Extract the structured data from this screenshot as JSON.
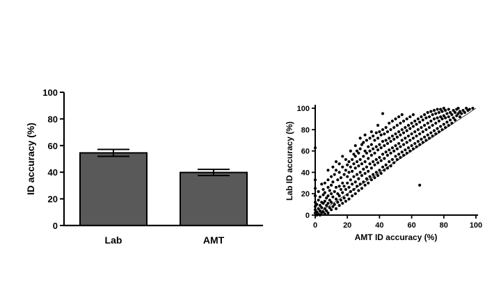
{
  "chart_data": [
    {
      "type": "bar",
      "categories": [
        "Lab",
        "AMT"
      ],
      "values": [
        54.5,
        39.8
      ],
      "error": [
        2.6,
        2.3
      ],
      "xlabel": "",
      "ylabel": "ID accuracy (%)",
      "ylim": [
        0,
        100
      ],
      "yticks": [
        "0",
        "20",
        "40",
        "60",
        "80",
        "100"
      ],
      "bar_color": "#595959",
      "grid": false
    },
    {
      "type": "scatter",
      "xlabel": "AMT ID accuracy (%)",
      "ylabel": "Lab ID accuracy (%)",
      "xlim": [
        0,
        100
      ],
      "ylim": [
        0,
        100
      ],
      "xticks": [
        "0",
        "20",
        "40",
        "60",
        "80",
        "100"
      ],
      "yticks": [
        "0",
        "20",
        "40",
        "60",
        "80",
        "100"
      ],
      "reference_line": [
        [
          0,
          0
        ],
        [
          100,
          100
        ]
      ],
      "point_color": "#000000",
      "grid": false,
      "points": [
        [
          0,
          2
        ],
        [
          0,
          5
        ],
        [
          0,
          8
        ],
        [
          0,
          12
        ],
        [
          0,
          18
        ],
        [
          0,
          25
        ],
        [
          0,
          33
        ],
        [
          0,
          63
        ],
        [
          1,
          0
        ],
        [
          1,
          3
        ],
        [
          1,
          10
        ],
        [
          2,
          1
        ],
        [
          2,
          6
        ],
        [
          2,
          14
        ],
        [
          2,
          22
        ],
        [
          3,
          0
        ],
        [
          3,
          4
        ],
        [
          3,
          9
        ],
        [
          3,
          17
        ],
        [
          4,
          2
        ],
        [
          4,
          7
        ],
        [
          4,
          12
        ],
        [
          4,
          29
        ],
        [
          5,
          3
        ],
        [
          5,
          11
        ],
        [
          5,
          19
        ],
        [
          5,
          24
        ],
        [
          6,
          1
        ],
        [
          6,
          6
        ],
        [
          6,
          13
        ],
        [
          6,
          21
        ],
        [
          6,
          30
        ],
        [
          7,
          4
        ],
        [
          7,
          9
        ],
        [
          7,
          16
        ],
        [
          8,
          2
        ],
        [
          8,
          11
        ],
        [
          8,
          18
        ],
        [
          8,
          26
        ],
        [
          8,
          33
        ],
        [
          8,
          42
        ],
        [
          9,
          7
        ],
        [
          9,
          14
        ],
        [
          9,
          23
        ],
        [
          10,
          5
        ],
        [
          10,
          12
        ],
        [
          10,
          20
        ],
        [
          10,
          28
        ],
        [
          10,
          36
        ],
        [
          11,
          8
        ],
        [
          11,
          17
        ],
        [
          11,
          31
        ],
        [
          11,
          45
        ],
        [
          12,
          10
        ],
        [
          12,
          22
        ],
        [
          12,
          38
        ],
        [
          13,
          6
        ],
        [
          13,
          15
        ],
        [
          13,
          26
        ],
        [
          13,
          42
        ],
        [
          13,
          50
        ],
        [
          14,
          12
        ],
        [
          14,
          20
        ],
        [
          14,
          33
        ],
        [
          15,
          9
        ],
        [
          15,
          18
        ],
        [
          15,
          27
        ],
        [
          15,
          40
        ],
        [
          15,
          48
        ],
        [
          16,
          14
        ],
        [
          16,
          24
        ],
        [
          16,
          35
        ],
        [
          17,
          11
        ],
        [
          17,
          21
        ],
        [
          17,
          30
        ],
        [
          17,
          45
        ],
        [
          17,
          55
        ],
        [
          18,
          16
        ],
        [
          18,
          27
        ],
        [
          18,
          38
        ],
        [
          19,
          13
        ],
        [
          19,
          24
        ],
        [
          19,
          42
        ],
        [
          19,
          52
        ],
        [
          20,
          19
        ],
        [
          20,
          30
        ],
        [
          20,
          36
        ],
        [
          20,
          47
        ],
        [
          21,
          15
        ],
        [
          21,
          26
        ],
        [
          21,
          40
        ],
        [
          21,
          50
        ],
        [
          22,
          22
        ],
        [
          22,
          33
        ],
        [
          22,
          45
        ],
        [
          22,
          60
        ],
        [
          23,
          18
        ],
        [
          23,
          29
        ],
        [
          23,
          41
        ],
        [
          23,
          52
        ],
        [
          24,
          24
        ],
        [
          24,
          36
        ],
        [
          24,
          48
        ],
        [
          24,
          57
        ],
        [
          25,
          20
        ],
        [
          25,
          31
        ],
        [
          25,
          44
        ],
        [
          25,
          55
        ],
        [
          25,
          65
        ],
        [
          26,
          27
        ],
        [
          26,
          38
        ],
        [
          26,
          50
        ],
        [
          26,
          60
        ],
        [
          27,
          23
        ],
        [
          27,
          34
        ],
        [
          27,
          46
        ],
        [
          27,
          58
        ],
        [
          28,
          29
        ],
        [
          28,
          40
        ],
        [
          28,
          52
        ],
        [
          28,
          62
        ],
        [
          28,
          72
        ],
        [
          29,
          25
        ],
        [
          29,
          37
        ],
        [
          29,
          48
        ],
        [
          29,
          66
        ],
        [
          30,
          31
        ],
        [
          30,
          43
        ],
        [
          30,
          55
        ],
        [
          30,
          68
        ],
        [
          31,
          28
        ],
        [
          31,
          39
        ],
        [
          31,
          50
        ],
        [
          31,
          60
        ],
        [
          31,
          75
        ],
        [
          32,
          34
        ],
        [
          32,
          45
        ],
        [
          32,
          58
        ],
        [
          32,
          70
        ],
        [
          33,
          30
        ],
        [
          33,
          41
        ],
        [
          33,
          53
        ],
        [
          33,
          64
        ],
        [
          34,
          36
        ],
        [
          34,
          48
        ],
        [
          34,
          60
        ],
        [
          34,
          72
        ],
        [
          35,
          33
        ],
        [
          35,
          44
        ],
        [
          35,
          56
        ],
        [
          35,
          66
        ],
        [
          35,
          78
        ],
        [
          36,
          38
        ],
        [
          36,
          50
        ],
        [
          36,
          62
        ],
        [
          36,
          74
        ],
        [
          37,
          35
        ],
        [
          37,
          47
        ],
        [
          37,
          58
        ],
        [
          37,
          70
        ],
        [
          38,
          40
        ],
        [
          38,
          52
        ],
        [
          38,
          64
        ],
        [
          38,
          77
        ],
        [
          39,
          37
        ],
        [
          39,
          49
        ],
        [
          39,
          61
        ],
        [
          39,
          72
        ],
        [
          39,
          84
        ],
        [
          40,
          42
        ],
        [
          40,
          54
        ],
        [
          40,
          66
        ],
        [
          40,
          78
        ],
        [
          41,
          39
        ],
        [
          41,
          51
        ],
        [
          41,
          63
        ],
        [
          41,
          75
        ],
        [
          42,
          45
        ],
        [
          42,
          57
        ],
        [
          42,
          69
        ],
        [
          42,
          80
        ],
        [
          42,
          95
        ],
        [
          43,
          42
        ],
        [
          43,
          53
        ],
        [
          43,
          65
        ],
        [
          43,
          76
        ],
        [
          44,
          47
        ],
        [
          44,
          59
        ],
        [
          44,
          70
        ],
        [
          44,
          82
        ],
        [
          45,
          44
        ],
        [
          45,
          56
        ],
        [
          45,
          67
        ],
        [
          45,
          78
        ],
        [
          46,
          50
        ],
        [
          46,
          61
        ],
        [
          46,
          72
        ],
        [
          46,
          86
        ],
        [
          47,
          46
        ],
        [
          47,
          58
        ],
        [
          47,
          69
        ],
        [
          47,
          80
        ],
        [
          48,
          52
        ],
        [
          48,
          63
        ],
        [
          48,
          74
        ],
        [
          48,
          88
        ],
        [
          49,
          49
        ],
        [
          49,
          60
        ],
        [
          49,
          71
        ],
        [
          49,
          82
        ],
        [
          50,
          55
        ],
        [
          50,
          65
        ],
        [
          50,
          76
        ],
        [
          50,
          90
        ],
        [
          51,
          52
        ],
        [
          51,
          62
        ],
        [
          51,
          73
        ],
        [
          51,
          84
        ],
        [
          52,
          57
        ],
        [
          52,
          67
        ],
        [
          52,
          78
        ],
        [
          52,
          92
        ],
        [
          53,
          54
        ],
        [
          53,
          64
        ],
        [
          53,
          75
        ],
        [
          53,
          86
        ],
        [
          54,
          59
        ],
        [
          54,
          70
        ],
        [
          54,
          80
        ],
        [
          54,
          94
        ],
        [
          55,
          56
        ],
        [
          55,
          66
        ],
        [
          55,
          77
        ],
        [
          55,
          88
        ],
        [
          56,
          61
        ],
        [
          56,
          72
        ],
        [
          56,
          82
        ],
        [
          57,
          58
        ],
        [
          57,
          68
        ],
        [
          57,
          79
        ],
        [
          57,
          90
        ],
        [
          58,
          63
        ],
        [
          58,
          74
        ],
        [
          58,
          84
        ],
        [
          59,
          60
        ],
        [
          59,
          70
        ],
        [
          59,
          81
        ],
        [
          59,
          92
        ],
        [
          60,
          65
        ],
        [
          60,
          76
        ],
        [
          60,
          86
        ],
        [
          61,
          62
        ],
        [
          61,
          72
        ],
        [
          61,
          83
        ],
        [
          61,
          94
        ],
        [
          62,
          67
        ],
        [
          62,
          78
        ],
        [
          62,
          88
        ],
        [
          63,
          64
        ],
        [
          63,
          74
        ],
        [
          63,
          85
        ],
        [
          64,
          69
        ],
        [
          64,
          80
        ],
        [
          64,
          90
        ],
        [
          65,
          28
        ],
        [
          65,
          66
        ],
        [
          65,
          76
        ],
        [
          65,
          87
        ],
        [
          66,
          71
        ],
        [
          66,
          82
        ],
        [
          66,
          92
        ],
        [
          67,
          68
        ],
        [
          67,
          78
        ],
        [
          67,
          89
        ],
        [
          68,
          73
        ],
        [
          68,
          84
        ],
        [
          68,
          94
        ],
        [
          69,
          70
        ],
        [
          69,
          80
        ],
        [
          69,
          91
        ],
        [
          70,
          75
        ],
        [
          70,
          86
        ],
        [
          70,
          96
        ],
        [
          71,
          72
        ],
        [
          71,
          82
        ],
        [
          71,
          92
        ],
        [
          72,
          77
        ],
        [
          72,
          88
        ],
        [
          72,
          97
        ],
        [
          73,
          74
        ],
        [
          73,
          84
        ],
        [
          73,
          94
        ],
        [
          74,
          79
        ],
        [
          74,
          90
        ],
        [
          74,
          98
        ],
        [
          75,
          76
        ],
        [
          75,
          86
        ],
        [
          75,
          95
        ],
        [
          76,
          81
        ],
        [
          76,
          91
        ],
        [
          76,
          99
        ],
        [
          77,
          78
        ],
        [
          77,
          88
        ],
        [
          77,
          96
        ],
        [
          78,
          83
        ],
        [
          78,
          92
        ],
        [
          78,
          99
        ],
        [
          79,
          80
        ],
        [
          79,
          90
        ],
        [
          79,
          97
        ],
        [
          80,
          85
        ],
        [
          80,
          93
        ],
        [
          80,
          100
        ],
        [
          81,
          82
        ],
        [
          81,
          91
        ],
        [
          81,
          98
        ],
        [
          82,
          87
        ],
        [
          82,
          95
        ],
        [
          83,
          84
        ],
        [
          83,
          92
        ],
        [
          83,
          99
        ],
        [
          84,
          89
        ],
        [
          84,
          96
        ],
        [
          85,
          86
        ],
        [
          85,
          94
        ],
        [
          86,
          91
        ],
        [
          86,
          98
        ],
        [
          87,
          89
        ],
        [
          87,
          96
        ],
        [
          88,
          93
        ],
        [
          88,
          99
        ],
        [
          89,
          95
        ],
        [
          89,
          100
        ],
        [
          90,
          92
        ],
        [
          90,
          97
        ],
        [
          91,
          95
        ],
        [
          92,
          98
        ],
        [
          93,
          96
        ],
        [
          94,
          100
        ],
        [
          95,
          98
        ],
        [
          96,
          99
        ],
        [
          98,
          100
        ]
      ]
    }
  ]
}
